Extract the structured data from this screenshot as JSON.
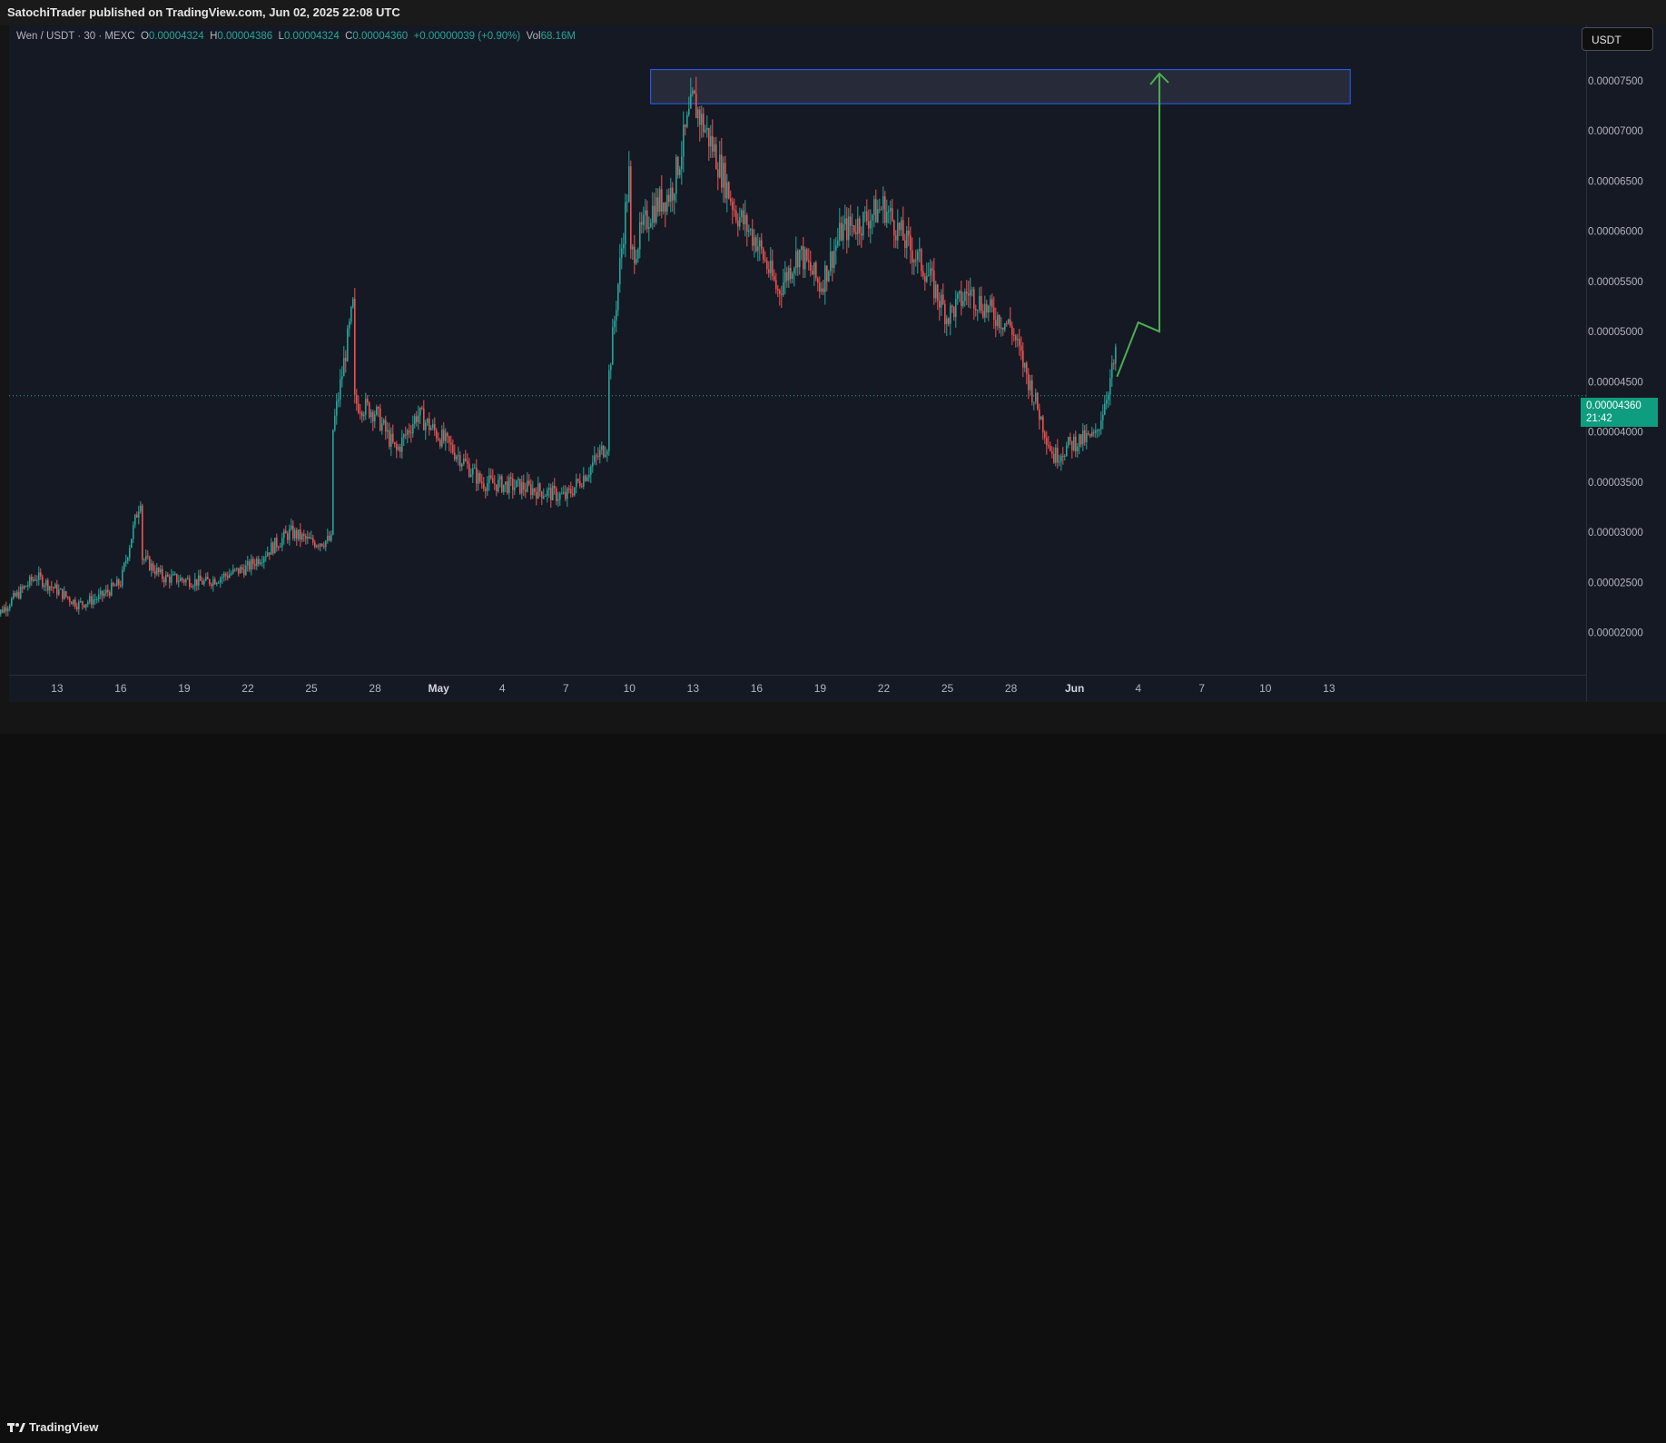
{
  "header": {
    "published": "SatochiTrader published on TradingView.com, Jun 02, 2025 22:08 UTC"
  },
  "legend": {
    "symbol": "Wen / USDT · 30 · MEXC",
    "o_label": "O",
    "o": "0.00004324",
    "h_label": "H",
    "h": "0.00004386",
    "l_label": "L",
    "l": "0.00004324",
    "c_label": "C",
    "c": "0.00004360",
    "change": "+0.00000039 (+0.90%)",
    "vol_label": "Vol",
    "vol": "68.16M"
  },
  "currency_button": "USDT",
  "last_price": {
    "value": "0.00004360",
    "countdown": "21:42"
  },
  "footer": {
    "brand": "TradingView"
  },
  "colors": {
    "up": "#26a69a",
    "down": "#ef5350",
    "zone_border": "#2962ff",
    "zone_fill": "#2a2e3d",
    "arrow": "#4caf50",
    "badge": "#0f9d7f",
    "background": "#151924"
  },
  "chart_data": {
    "type": "candlestick",
    "title": "",
    "price_axis": {
      "ticks": [
        "0.00007500",
        "0.00007000",
        "0.00006500",
        "0.00006000",
        "0.00005500",
        "0.00005000",
        "0.00004500",
        "0.00004000",
        "0.00003500",
        "0.00003000",
        "0.00002500",
        "0.00002000"
      ],
      "ylim": [
        1.58e-05,
        8.05e-05
      ]
    },
    "time_axis": {
      "ticks": [
        "13",
        "16",
        "19",
        "22",
        "25",
        "28",
        "May",
        "4",
        "7",
        "10",
        "13",
        "16",
        "19",
        "22",
        "25",
        "28",
        "Jun",
        "4",
        "7",
        "10",
        "13"
      ],
      "bold": [
        "May",
        "Jun"
      ]
    },
    "price_path": {
      "x": [
        "Apr 10",
        "Apr 12",
        "Apr 14",
        "Apr 15",
        "Apr 16",
        "Apr 17",
        "Apr 17",
        "Apr 18",
        "Apr 20",
        "Apr 22",
        "Apr 24",
        "Apr 25",
        "Apr 26",
        "Apr 26",
        "Apr 27",
        "Apr 27",
        "Apr 28",
        "Apr 29",
        "Apr 30",
        "May 2",
        "May 3",
        "May 5",
        "May 7",
        "May 8",
        "May 9",
        "May 9",
        "May 10",
        "May 10",
        "May 11",
        "May 12",
        "May 13",
        "May 14",
        "May 15",
        "May 16",
        "May 17",
        "May 18",
        "May 19",
        "May 20",
        "May 21",
        "May 22",
        "May 23",
        "May 24",
        "May 25",
        "May 26",
        "May 27",
        "May 28",
        "May 29",
        "May 30",
        "May 31",
        "Jun 1",
        "Jun 2",
        "Jun 2"
      ],
      "y": [
        2.14e-05,
        2.56e-05,
        2.28e-05,
        2.35e-05,
        2.5e-05,
        3.4e-05,
        2.75e-05,
        2.55e-05,
        2.5e-05,
        2.65e-05,
        3e-05,
        2.9e-05,
        2.92e-05,
        4e-05,
        5.3e-05,
        4.3e-05,
        4.2e-05,
        3.8e-05,
        4.18e-05,
        3.75e-05,
        3.5e-05,
        3.45e-05,
        3.35e-05,
        3.6e-05,
        3.9e-05,
        4.5e-05,
        6.6e-05,
        5.7e-05,
        6.2e-05,
        6.4e-05,
        7.3e-05,
        6.8e-05,
        6.2e-05,
        5.9e-05,
        5.4e-05,
        5.8e-05,
        5.45e-05,
        6e-05,
        6.1e-05,
        6.25e-05,
        5.9e-05,
        5.6e-05,
        5.15e-05,
        5.4e-05,
        5.2e-05,
        5.05e-05,
        4.4e-05,
        3.75e-05,
        3.9e-05,
        3.95e-05,
        4.8e-05,
        4.36e-05
      ]
    },
    "resistance_zone": {
      "from": "May 11",
      "to": "Jun 13",
      "low": 7.27e-05,
      "high": 7.61e-05
    },
    "projection_arrow": {
      "x": [
        "Jun 2",
        "Jun 3",
        "Jun 4",
        "Jun 4"
      ],
      "y": [
        4.55e-05,
        5.09e-05,
        5e-05,
        7.57e-05
      ]
    },
    "last_price": 4.36e-05,
    "grid": false
  }
}
